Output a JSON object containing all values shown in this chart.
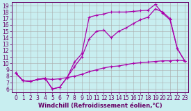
{
  "background_color": "#c8eef0",
  "line_color": "#aa00aa",
  "grid_color": "#aaaaaa",
  "xlabel": "Windchill (Refroidissement éolien,°C)",
  "xlabel_color": "#660066",
  "tick_color": "#660066",
  "xlim": [
    -0.5,
    23.5
  ],
  "ylim": [
    5.5,
    19.5
  ],
  "xticks": [
    0,
    1,
    2,
    3,
    4,
    5,
    6,
    7,
    8,
    9,
    10,
    11,
    12,
    13,
    14,
    15,
    16,
    17,
    18,
    19,
    20,
    21,
    22,
    23
  ],
  "yticks": [
    6,
    7,
    8,
    9,
    10,
    11,
    12,
    13,
    14,
    15,
    16,
    17,
    18,
    19
  ],
  "line1_x": [
    0,
    1,
    2,
    3,
    4,
    5,
    6,
    7,
    8,
    9,
    10,
    11,
    12,
    13,
    14,
    15,
    16,
    17,
    18,
    19,
    20,
    21,
    22,
    23
  ],
  "line1_y": [
    8.5,
    7.3,
    7.2,
    7.5,
    7.6,
    7.5,
    7.6,
    7.8,
    8.0,
    8.3,
    8.7,
    9.0,
    9.3,
    9.5,
    9.6,
    9.8,
    10.0,
    10.1,
    10.2,
    10.3,
    10.4,
    10.4,
    10.5,
    10.4
  ],
  "line2_x": [
    0,
    1,
    2,
    3,
    4,
    5,
    6,
    7,
    8,
    9,
    10,
    11,
    12,
    13,
    14,
    15,
    16,
    17,
    18,
    19,
    20,
    21,
    22,
    23
  ],
  "line2_y": [
    8.5,
    7.3,
    7.2,
    7.5,
    7.7,
    6.0,
    6.3,
    7.8,
    9.5,
    11.0,
    13.8,
    15.0,
    15.2,
    14.0,
    15.0,
    15.5,
    16.2,
    16.8,
    17.2,
    18.5,
    18.0,
    17.0,
    12.3,
    10.4
  ],
  "line3_x": [
    0,
    1,
    2,
    3,
    4,
    5,
    6,
    7,
    8,
    9,
    10,
    11,
    12,
    13,
    14,
    15,
    16,
    17,
    18,
    19,
    20,
    21,
    22,
    23
  ],
  "line3_y": [
    8.5,
    7.3,
    7.2,
    7.5,
    7.7,
    6.0,
    6.3,
    7.8,
    10.2,
    11.5,
    17.2,
    17.5,
    17.7,
    18.0,
    18.0,
    18.0,
    18.1,
    18.2,
    18.3,
    19.2,
    17.8,
    16.8,
    12.3,
    10.4
  ],
  "marker": "+",
  "markersize": 3,
  "linewidth": 0.9,
  "fontsize_ticks": 5.5,
  "fontsize_xlabel": 6.0
}
